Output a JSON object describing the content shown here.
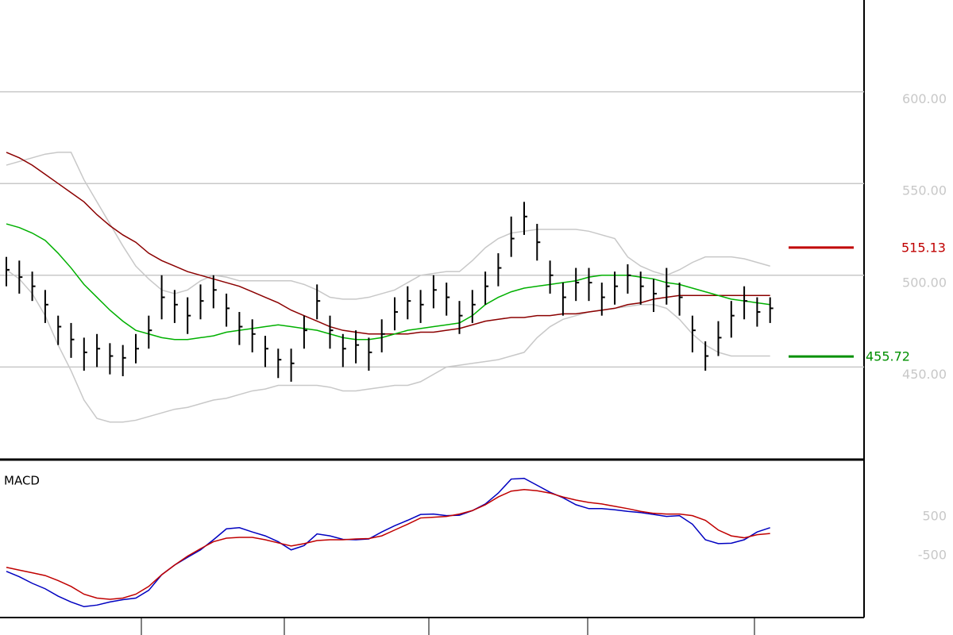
{
  "chart_data": [
    {
      "type": "ohlc",
      "close": [
        503,
        499,
        494,
        484,
        472,
        465,
        458,
        460,
        456,
        455,
        460,
        470,
        488,
        484,
        478,
        486,
        492,
        482,
        472,
        468,
        460,
        454,
        452,
        470,
        486,
        470,
        460,
        462,
        458,
        468,
        480,
        486,
        484,
        492,
        488,
        478,
        484,
        494,
        504,
        520,
        532,
        518,
        500,
        488,
        496,
        496,
        488,
        494,
        500,
        494,
        490,
        494,
        488,
        470,
        456,
        466,
        478,
        486,
        480,
        482
      ],
      "high": [
        510,
        508,
        502,
        492,
        478,
        474,
        466,
        468,
        463,
        462,
        468,
        478,
        500,
        492,
        488,
        495,
        500,
        490,
        480,
        476,
        467,
        460,
        460,
        478,
        495,
        478,
        468,
        470,
        466,
        476,
        488,
        494,
        492,
        500,
        496,
        486,
        492,
        502,
        512,
        532,
        540,
        528,
        508,
        496,
        504,
        504,
        496,
        502,
        506,
        502,
        498,
        504,
        496,
        478,
        464,
        475,
        486,
        494,
        488,
        488
      ],
      "low": [
        494,
        490,
        486,
        474,
        462,
        455,
        448,
        450,
        446,
        445,
        452,
        460,
        476,
        474,
        468,
        476,
        482,
        472,
        462,
        458,
        450,
        444,
        442,
        460,
        476,
        460,
        450,
        452,
        448,
        458,
        470,
        476,
        474,
        482,
        478,
        468,
        474,
        484,
        494,
        510,
        522,
        508,
        490,
        478,
        486,
        486,
        478,
        484,
        490,
        484,
        480,
        484,
        478,
        458,
        448,
        456,
        466,
        476,
        472,
        474
      ],
      "series": [
        {
          "name": "upper",
          "color": "#c8c8c8",
          "values": [
            560,
            562,
            564,
            566,
            567,
            567,
            552,
            540,
            528,
            516,
            505,
            498,
            492,
            490,
            492,
            497,
            500,
            499,
            497,
            497,
            497,
            497,
            497,
            495,
            492,
            488,
            487,
            487,
            488,
            490,
            492,
            496,
            500,
            501,
            502,
            502,
            508,
            515,
            520,
            523,
            524,
            525,
            525,
            525,
            525,
            524,
            522,
            520,
            510,
            505,
            502,
            500,
            503,
            507,
            510,
            510,
            510,
            509,
            507,
            505
          ]
        },
        {
          "name": "lower",
          "color": "#c8c8c8",
          "values": [
            503,
            498,
            490,
            478,
            462,
            448,
            432,
            422,
            420,
            420,
            421,
            423,
            425,
            427,
            428,
            430,
            432,
            433,
            435,
            437,
            438,
            440,
            440,
            440,
            440,
            439,
            437,
            437,
            438,
            439,
            440,
            440,
            442,
            446,
            450,
            451,
            452,
            453,
            454,
            456,
            458,
            466,
            472,
            476,
            478,
            480,
            481,
            482,
            483,
            484,
            484,
            482,
            476,
            468,
            462,
            458,
            456,
            456,
            456,
            456
          ]
        },
        {
          "name": "ma-long",
          "color": "#8b0000",
          "values": [
            567,
            564,
            560,
            555,
            550,
            545,
            540,
            533,
            527,
            522,
            518,
            512,
            508,
            505,
            502,
            500,
            498,
            496,
            494,
            491,
            488,
            485,
            481,
            478,
            475,
            472,
            470,
            469,
            468,
            468,
            468,
            468,
            469,
            469,
            470,
            471,
            473,
            475,
            476,
            477,
            477,
            478,
            478,
            479,
            479,
            480,
            481,
            482,
            484,
            485,
            487,
            488,
            489,
            489,
            489,
            489,
            489,
            489,
            489,
            489
          ]
        },
        {
          "name": "ma-short",
          "color": "#00b000",
          "values": [
            528,
            526,
            523,
            519,
            512,
            504,
            495,
            488,
            481,
            475,
            470,
            468,
            466,
            465,
            465,
            466,
            467,
            469,
            470,
            471,
            472,
            473,
            472,
            471,
            470,
            468,
            466,
            465,
            465,
            466,
            468,
            470,
            471,
            472,
            473,
            474,
            478,
            484,
            488,
            491,
            493,
            494,
            495,
            496,
            497,
            499,
            500,
            500,
            500,
            499,
            498,
            496,
            495,
            493,
            491,
            489,
            487,
            486,
            485,
            484
          ]
        }
      ],
      "ylim": [
        400,
        650
      ],
      "yticks": [
        {
          "value": 450,
          "label": "450.00"
        },
        {
          "value": 500,
          "label": "500.00"
        },
        {
          "value": 550,
          "label": "550.00"
        },
        {
          "value": 600,
          "label": "600.00"
        }
      ],
      "grid": true,
      "markers": [
        {
          "value": 515.13,
          "label": "515.13",
          "color": "#c00000"
        },
        {
          "value": 455.72,
          "label": "455.72",
          "color": "#009000"
        }
      ]
    },
    {
      "type": "line",
      "title": "MACD",
      "series": [
        {
          "name": "macd",
          "color": "#0000c0",
          "values": [
            -1112,
            -1250,
            -1420,
            -1560,
            -1750,
            -1900,
            -2020,
            -1980,
            -1900,
            -1840,
            -1800,
            -1600,
            -1200,
            -950,
            -750,
            -560,
            -300,
            -20,
            10,
            -100,
            -200,
            -350,
            -560,
            -450,
            -150,
            -200,
            -290,
            -300,
            -280,
            -100,
            60,
            200,
            350,
            360,
            320,
            330,
            450,
            620,
            900,
            1260,
            1280,
            1100,
            920,
            780,
            600,
            500,
            500,
            470,
            430,
            400,
            350,
            300,
            320,
            100,
            -300,
            -400,
            -390,
            -300,
            -100,
            10
          ]
        },
        {
          "name": "signal",
          "color": "#c00000",
          "values": [
            -1010,
            -1080,
            -1150,
            -1220,
            -1350,
            -1500,
            -1700,
            -1800,
            -1830,
            -1800,
            -1700,
            -1500,
            -1200,
            -950,
            -720,
            -530,
            -350,
            -260,
            -240,
            -240,
            -300,
            -380,
            -460,
            -400,
            -320,
            -300,
            -300,
            -280,
            -270,
            -200,
            -50,
            100,
            260,
            280,
            300,
            360,
            450,
            600,
            800,
            950,
            990,
            960,
            900,
            800,
            720,
            660,
            620,
            560,
            500,
            430,
            380,
            360,
            360,
            320,
            200,
            -50,
            -200,
            -250,
            -170,
            -140
          ]
        }
      ],
      "ylim": [
        -2300,
        1700
      ],
      "yticks": [
        500,
        -500
      ]
    }
  ]
}
